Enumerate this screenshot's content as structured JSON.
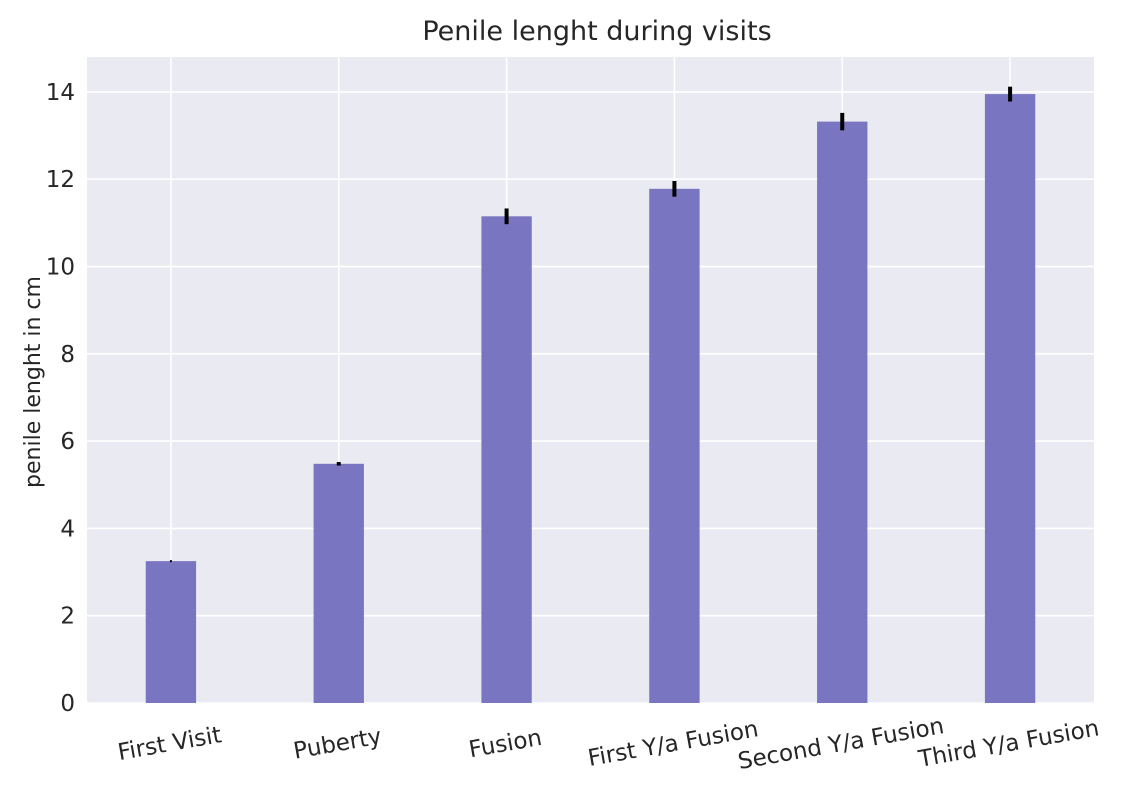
{
  "chart_data": {
    "type": "bar",
    "title": "Penile lenght during visits",
    "xlabel": "",
    "ylabel": "penile lenght in cm",
    "categories": [
      "First Visit",
      "Puberty",
      "Fusion",
      "First Y/a Fusion",
      "Second Y/a Fusion",
      "Third Y/a Fusion"
    ],
    "values": [
      3.25,
      5.48,
      11.15,
      11.78,
      13.32,
      13.95
    ],
    "errors": [
      0.0,
      0.04,
      0.18,
      0.18,
      0.2,
      0.17
    ],
    "ylim": [
      0,
      14.8
    ],
    "yticks": [
      0,
      2,
      4,
      6,
      8,
      10,
      12,
      14
    ],
    "grid": true,
    "legend": "none",
    "bar_color": "#7a75c1",
    "error_color": "#000000",
    "plot_background": "#eaeaf2",
    "grid_color": "#ffffff"
  }
}
